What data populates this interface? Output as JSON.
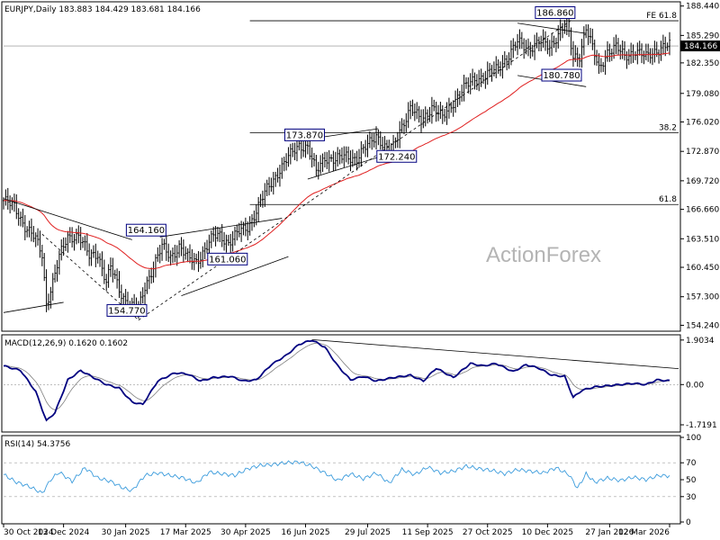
{
  "header": {
    "main": "EURJPY,Daily  183.883 184.429 183.681 184.166",
    "macd": "MACD(12,26,9) 0.1620 0.1602",
    "rsi": "RSI(14) 54.3756"
  },
  "watermark": "ActionForex",
  "chart_data": [
    {
      "type": "candlestick",
      "symbol": "EURJPY",
      "timeframe": "Daily",
      "ohlc_last": {
        "open": 183.883,
        "high": 184.429,
        "low": 183.681,
        "close": 184.166
      },
      "current_price_label": "184.166",
      "yaxis_ticks": [
        "188.440",
        "185.290",
        "182.350",
        "179.080",
        "176.020",
        "172.870",
        "169.720",
        "166.660",
        "163.510",
        "160.450",
        "157.300",
        "154.240"
      ],
      "ylim": [
        153.8,
        188.7
      ],
      "x_ticks": [
        "30 Oct 2024",
        "13 Dec 2024",
        "30 Jan 2025",
        "17 Mar 2025",
        "30 Apr 2025",
        "16 Jun 2025",
        "29 Jul 2025",
        "11 Sep 2025",
        "27 Oct 2025",
        "10 Dec 2025",
        "27 Jan 2026",
        "12 Mar 2026"
      ],
      "anchors": [
        {
          "i": 0,
          "v": 167.6
        },
        {
          "i": 5,
          "v": 166.9
        },
        {
          "i": 10,
          "v": 164.9
        },
        {
          "i": 15,
          "v": 163.4
        },
        {
          "i": 18,
          "v": 161.8
        },
        {
          "i": 20,
          "v": 156.6
        },
        {
          "i": 23,
          "v": 158.9
        },
        {
          "i": 26,
          "v": 161.5
        },
        {
          "i": 30,
          "v": 163.7
        },
        {
          "i": 35,
          "v": 163.9
        },
        {
          "i": 40,
          "v": 161.6
        },
        {
          "i": 44,
          "v": 162.0
        },
        {
          "i": 48,
          "v": 158.8
        },
        {
          "i": 50,
          "v": 160.4
        },
        {
          "i": 55,
          "v": 157.6
        },
        {
          "i": 59,
          "v": 156.3
        },
        {
          "i": 63,
          "v": 155.9
        },
        {
          "i": 66,
          "v": 158.4
        },
        {
          "i": 70,
          "v": 160.6
        },
        {
          "i": 74,
          "v": 162.6
        },
        {
          "i": 78,
          "v": 161.6
        },
        {
          "i": 82,
          "v": 162.7
        },
        {
          "i": 86,
          "v": 161.4
        },
        {
          "i": 90,
          "v": 161.1
        },
        {
          "i": 94,
          "v": 162.4
        },
        {
          "i": 98,
          "v": 163.7
        },
        {
          "i": 101,
          "v": 163.9
        },
        {
          "i": 105,
          "v": 163.1
        },
        {
          "i": 110,
          "v": 164.2
        },
        {
          "i": 114,
          "v": 164.8
        },
        {
          "i": 118,
          "v": 166.5
        },
        {
          "i": 123,
          "v": 168.8
        },
        {
          "i": 128,
          "v": 170.6
        },
        {
          "i": 133,
          "v": 172.2
        },
        {
          "i": 138,
          "v": 173.6
        },
        {
          "i": 142,
          "v": 173.3
        },
        {
          "i": 146,
          "v": 170.6
        },
        {
          "i": 150,
          "v": 172.3
        },
        {
          "i": 155,
          "v": 171.9
        },
        {
          "i": 160,
          "v": 172.4
        },
        {
          "i": 165,
          "v": 172.1
        },
        {
          "i": 170,
          "v": 173.5
        },
        {
          "i": 174,
          "v": 174.7
        },
        {
          "i": 178,
          "v": 173.3
        },
        {
          "i": 181,
          "v": 172.6
        },
        {
          "i": 185,
          "v": 175.2
        },
        {
          "i": 190,
          "v": 177.5
        },
        {
          "i": 195,
          "v": 176.1
        },
        {
          "i": 200,
          "v": 177.7
        },
        {
          "i": 205,
          "v": 176.4
        },
        {
          "i": 210,
          "v": 178.2
        },
        {
          "i": 215,
          "v": 179.6
        },
        {
          "i": 220,
          "v": 180.6
        },
        {
          "i": 225,
          "v": 181.0
        },
        {
          "i": 230,
          "v": 181.6
        },
        {
          "i": 235,
          "v": 182.9
        },
        {
          "i": 240,
          "v": 184.5
        },
        {
          "i": 245,
          "v": 183.9
        },
        {
          "i": 250,
          "v": 184.6
        },
        {
          "i": 255,
          "v": 184.0
        },
        {
          "i": 260,
          "v": 185.9
        },
        {
          "i": 263,
          "v": 186.6
        },
        {
          "i": 266,
          "v": 182.8
        },
        {
          "i": 269,
          "v": 183.2
        },
        {
          "i": 272,
          "v": 186.2
        },
        {
          "i": 275,
          "v": 183.9
        },
        {
          "i": 278,
          "v": 181.6
        },
        {
          "i": 282,
          "v": 183.6
        },
        {
          "i": 286,
          "v": 184.0
        },
        {
          "i": 290,
          "v": 183.0
        },
        {
          "i": 295,
          "v": 183.7
        },
        {
          "i": 300,
          "v": 182.9
        },
        {
          "i": 304,
          "v": 183.6
        },
        {
          "i": 308,
          "v": 184.1
        },
        {
          "i": 311,
          "v": 184.2
        }
      ],
      "moving_average": {
        "color": "#e02020",
        "type": "EMA",
        "period": 55
      },
      "horizontal_lines": [
        {
          "value": 186.86,
          "label": "FE 61.8"
        },
        {
          "value": 174.85,
          "label": "38.2"
        },
        {
          "value": 167.18,
          "label": "61.8"
        },
        {
          "value": 184.166,
          "label": ""
        }
      ],
      "annotations": [
        "186.860",
        "180.780",
        "173.870",
        "172.240",
        "164.160",
        "161.060",
        "154.770"
      ],
      "colors": {
        "candle": "#000000",
        "ma": "#e02020",
        "box_border": "#000080",
        "grid": "#e6e6e6"
      }
    },
    {
      "type": "line",
      "name": "MACD(12,26,9)",
      "values_label": "0.1620 0.1602",
      "yaxis_ticks": [
        "1.9034",
        "0.00",
        "-1.7191"
      ],
      "ylim": [
        -1.95,
        2.05
      ],
      "macd_anchors": [
        {
          "i": 0,
          "v": 0.8
        },
        {
          "i": 8,
          "v": 0.6
        },
        {
          "i": 15,
          "v": -0.3
        },
        {
          "i": 20,
          "v": -1.55
        },
        {
          "i": 24,
          "v": -1.2
        },
        {
          "i": 30,
          "v": 0.2
        },
        {
          "i": 36,
          "v": 0.6
        },
        {
          "i": 42,
          "v": 0.3
        },
        {
          "i": 48,
          "v": 0.0
        },
        {
          "i": 54,
          "v": -0.15
        },
        {
          "i": 60,
          "v": -0.75
        },
        {
          "i": 65,
          "v": -0.85
        },
        {
          "i": 72,
          "v": 0.15
        },
        {
          "i": 80,
          "v": 0.5
        },
        {
          "i": 86,
          "v": 0.45
        },
        {
          "i": 92,
          "v": 0.15
        },
        {
          "i": 98,
          "v": 0.3
        },
        {
          "i": 106,
          "v": 0.35
        },
        {
          "i": 112,
          "v": 0.15
        },
        {
          "i": 118,
          "v": 0.2
        },
        {
          "i": 125,
          "v": 0.85
        },
        {
          "i": 132,
          "v": 1.25
        },
        {
          "i": 138,
          "v": 1.72
        },
        {
          "i": 144,
          "v": 1.9
        },
        {
          "i": 150,
          "v": 1.6
        },
        {
          "i": 156,
          "v": 0.8
        },
        {
          "i": 162,
          "v": 0.2
        },
        {
          "i": 168,
          "v": 0.35
        },
        {
          "i": 174,
          "v": 0.15
        },
        {
          "i": 182,
          "v": 0.3
        },
        {
          "i": 190,
          "v": 0.4
        },
        {
          "i": 196,
          "v": 0.15
        },
        {
          "i": 202,
          "v": 0.7
        },
        {
          "i": 210,
          "v": 0.3
        },
        {
          "i": 218,
          "v": 0.9
        },
        {
          "i": 224,
          "v": 0.8
        },
        {
          "i": 230,
          "v": 0.9
        },
        {
          "i": 238,
          "v": 0.55
        },
        {
          "i": 244,
          "v": 0.85
        },
        {
          "i": 250,
          "v": 0.7
        },
        {
          "i": 256,
          "v": 0.4
        },
        {
          "i": 262,
          "v": 0.35
        },
        {
          "i": 266,
          "v": -0.55
        },
        {
          "i": 270,
          "v": -0.25
        },
        {
          "i": 276,
          "v": -0.1
        },
        {
          "i": 282,
          "v": -0.05
        },
        {
          "i": 288,
          "v": 0.0
        },
        {
          "i": 294,
          "v": 0.05
        },
        {
          "i": 300,
          "v": 0.0
        },
        {
          "i": 305,
          "v": 0.2
        },
        {
          "i": 311,
          "v": 0.16
        }
      ],
      "colors": {
        "macd": "#000080",
        "signal": "#808080"
      }
    },
    {
      "type": "line",
      "name": "RSI(14)",
      "value_label": "54.3756",
      "yaxis_ticks": [
        "100",
        "70",
        "50",
        "30",
        "0"
      ],
      "ylim": [
        0,
        100
      ],
      "rsi_anchors": [
        {
          "i": 0,
          "v": 56
        },
        {
          "i": 6,
          "v": 47
        },
        {
          "i": 12,
          "v": 42
        },
        {
          "i": 18,
          "v": 34
        },
        {
          "i": 22,
          "v": 50
        },
        {
          "i": 26,
          "v": 59
        },
        {
          "i": 32,
          "v": 48
        },
        {
          "i": 38,
          "v": 64
        },
        {
          "i": 44,
          "v": 52
        },
        {
          "i": 50,
          "v": 48
        },
        {
          "i": 56,
          "v": 40
        },
        {
          "i": 60,
          "v": 37
        },
        {
          "i": 66,
          "v": 55
        },
        {
          "i": 72,
          "v": 58
        },
        {
          "i": 78,
          "v": 55
        },
        {
          "i": 84,
          "v": 52
        },
        {
          "i": 90,
          "v": 46
        },
        {
          "i": 96,
          "v": 59
        },
        {
          "i": 102,
          "v": 57
        },
        {
          "i": 108,
          "v": 55
        },
        {
          "i": 114,
          "v": 63
        },
        {
          "i": 120,
          "v": 67
        },
        {
          "i": 126,
          "v": 68
        },
        {
          "i": 132,
          "v": 70
        },
        {
          "i": 138,
          "v": 71
        },
        {
          "i": 144,
          "v": 66
        },
        {
          "i": 150,
          "v": 58
        },
        {
          "i": 156,
          "v": 49
        },
        {
          "i": 162,
          "v": 57
        },
        {
          "i": 168,
          "v": 51
        },
        {
          "i": 174,
          "v": 58
        },
        {
          "i": 180,
          "v": 46
        },
        {
          "i": 186,
          "v": 62
        },
        {
          "i": 192,
          "v": 56
        },
        {
          "i": 198,
          "v": 65
        },
        {
          "i": 204,
          "v": 58
        },
        {
          "i": 210,
          "v": 60
        },
        {
          "i": 216,
          "v": 66
        },
        {
          "i": 222,
          "v": 63
        },
        {
          "i": 228,
          "v": 61
        },
        {
          "i": 234,
          "v": 57
        },
        {
          "i": 240,
          "v": 62
        },
        {
          "i": 246,
          "v": 60
        },
        {
          "i": 252,
          "v": 58
        },
        {
          "i": 258,
          "v": 64
        },
        {
          "i": 264,
          "v": 56
        },
        {
          "i": 268,
          "v": 40
        },
        {
          "i": 272,
          "v": 57
        },
        {
          "i": 276,
          "v": 47
        },
        {
          "i": 282,
          "v": 52
        },
        {
          "i": 288,
          "v": 49
        },
        {
          "i": 294,
          "v": 53
        },
        {
          "i": 300,
          "v": 50
        },
        {
          "i": 306,
          "v": 55
        },
        {
          "i": 311,
          "v": 54.4
        }
      ],
      "levels": [
        70,
        30
      ],
      "colors": {
        "rsi": "#3a9bdc",
        "level": "#a0a0a0"
      }
    }
  ]
}
